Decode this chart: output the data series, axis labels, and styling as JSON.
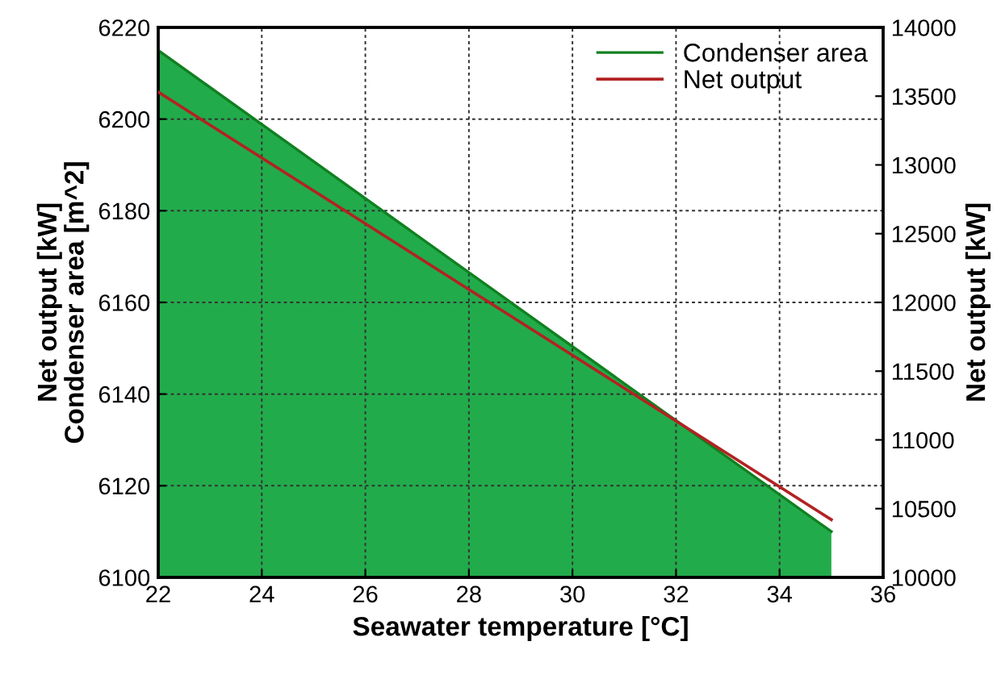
{
  "chart_data": {
    "type": "line",
    "xlabel": "Seawater temperature [°C]",
    "ylabel": "Net output [kW]\nCondenser area [m^2]",
    "y2label": "Net output [kW]",
    "x": [
      22,
      35
    ],
    "series": [
      {
        "name": "Condenser area",
        "type": "area",
        "color": "#22ab4b",
        "values": [
          6215,
          6110
        ]
      },
      {
        "name": "Net output",
        "axis": "y2",
        "color": "#b22222",
        "values": [
          13530,
          10420
        ]
      }
    ],
    "xlim": [
      22,
      36
    ],
    "xticks": [
      22,
      24,
      26,
      28,
      30,
      32,
      34,
      36
    ],
    "ylim": [
      6100,
      6220
    ],
    "yticks": [
      6100,
      6120,
      6140,
      6160,
      6180,
      6200,
      6220
    ],
    "y2lim": [
      10000,
      14000
    ],
    "y2ticks": [
      10000,
      10500,
      11000,
      11500,
      12000,
      12500,
      13000,
      13500,
      14000
    ],
    "grid": true,
    "legend": "top right"
  }
}
